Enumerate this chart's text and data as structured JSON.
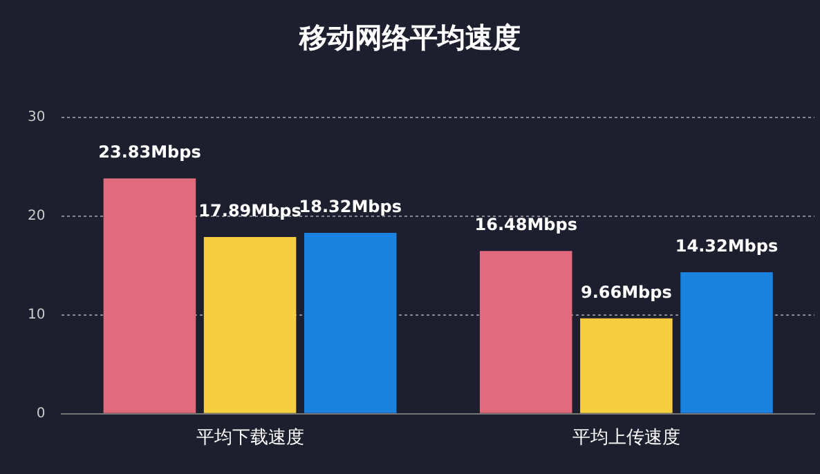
{
  "chart_data": {
    "type": "bar",
    "title": "移动网络平均速度",
    "categories": [
      "平均下载速度",
      "平均上传速度"
    ],
    "series": [
      {
        "color": "#e06a7e",
        "values": [
          23.83,
          16.48
        ],
        "value_labels": [
          "23.83Mbps",
          "16.48Mbps"
        ]
      },
      {
        "color": "#f5cf3f",
        "values": [
          17.89,
          9.66
        ],
        "value_labels": [
          "17.89Mbps",
          "9.66Mbps"
        ]
      },
      {
        "color": "#1c82e0",
        "values": [
          18.32,
          14.32
        ],
        "value_labels": [
          "18.32Mbps",
          "14.32Mbps"
        ]
      }
    ],
    "ylim": [
      0,
      30
    ],
    "yticks": [
      0,
      10,
      20,
      30
    ],
    "grid": "y",
    "legend": false
  }
}
